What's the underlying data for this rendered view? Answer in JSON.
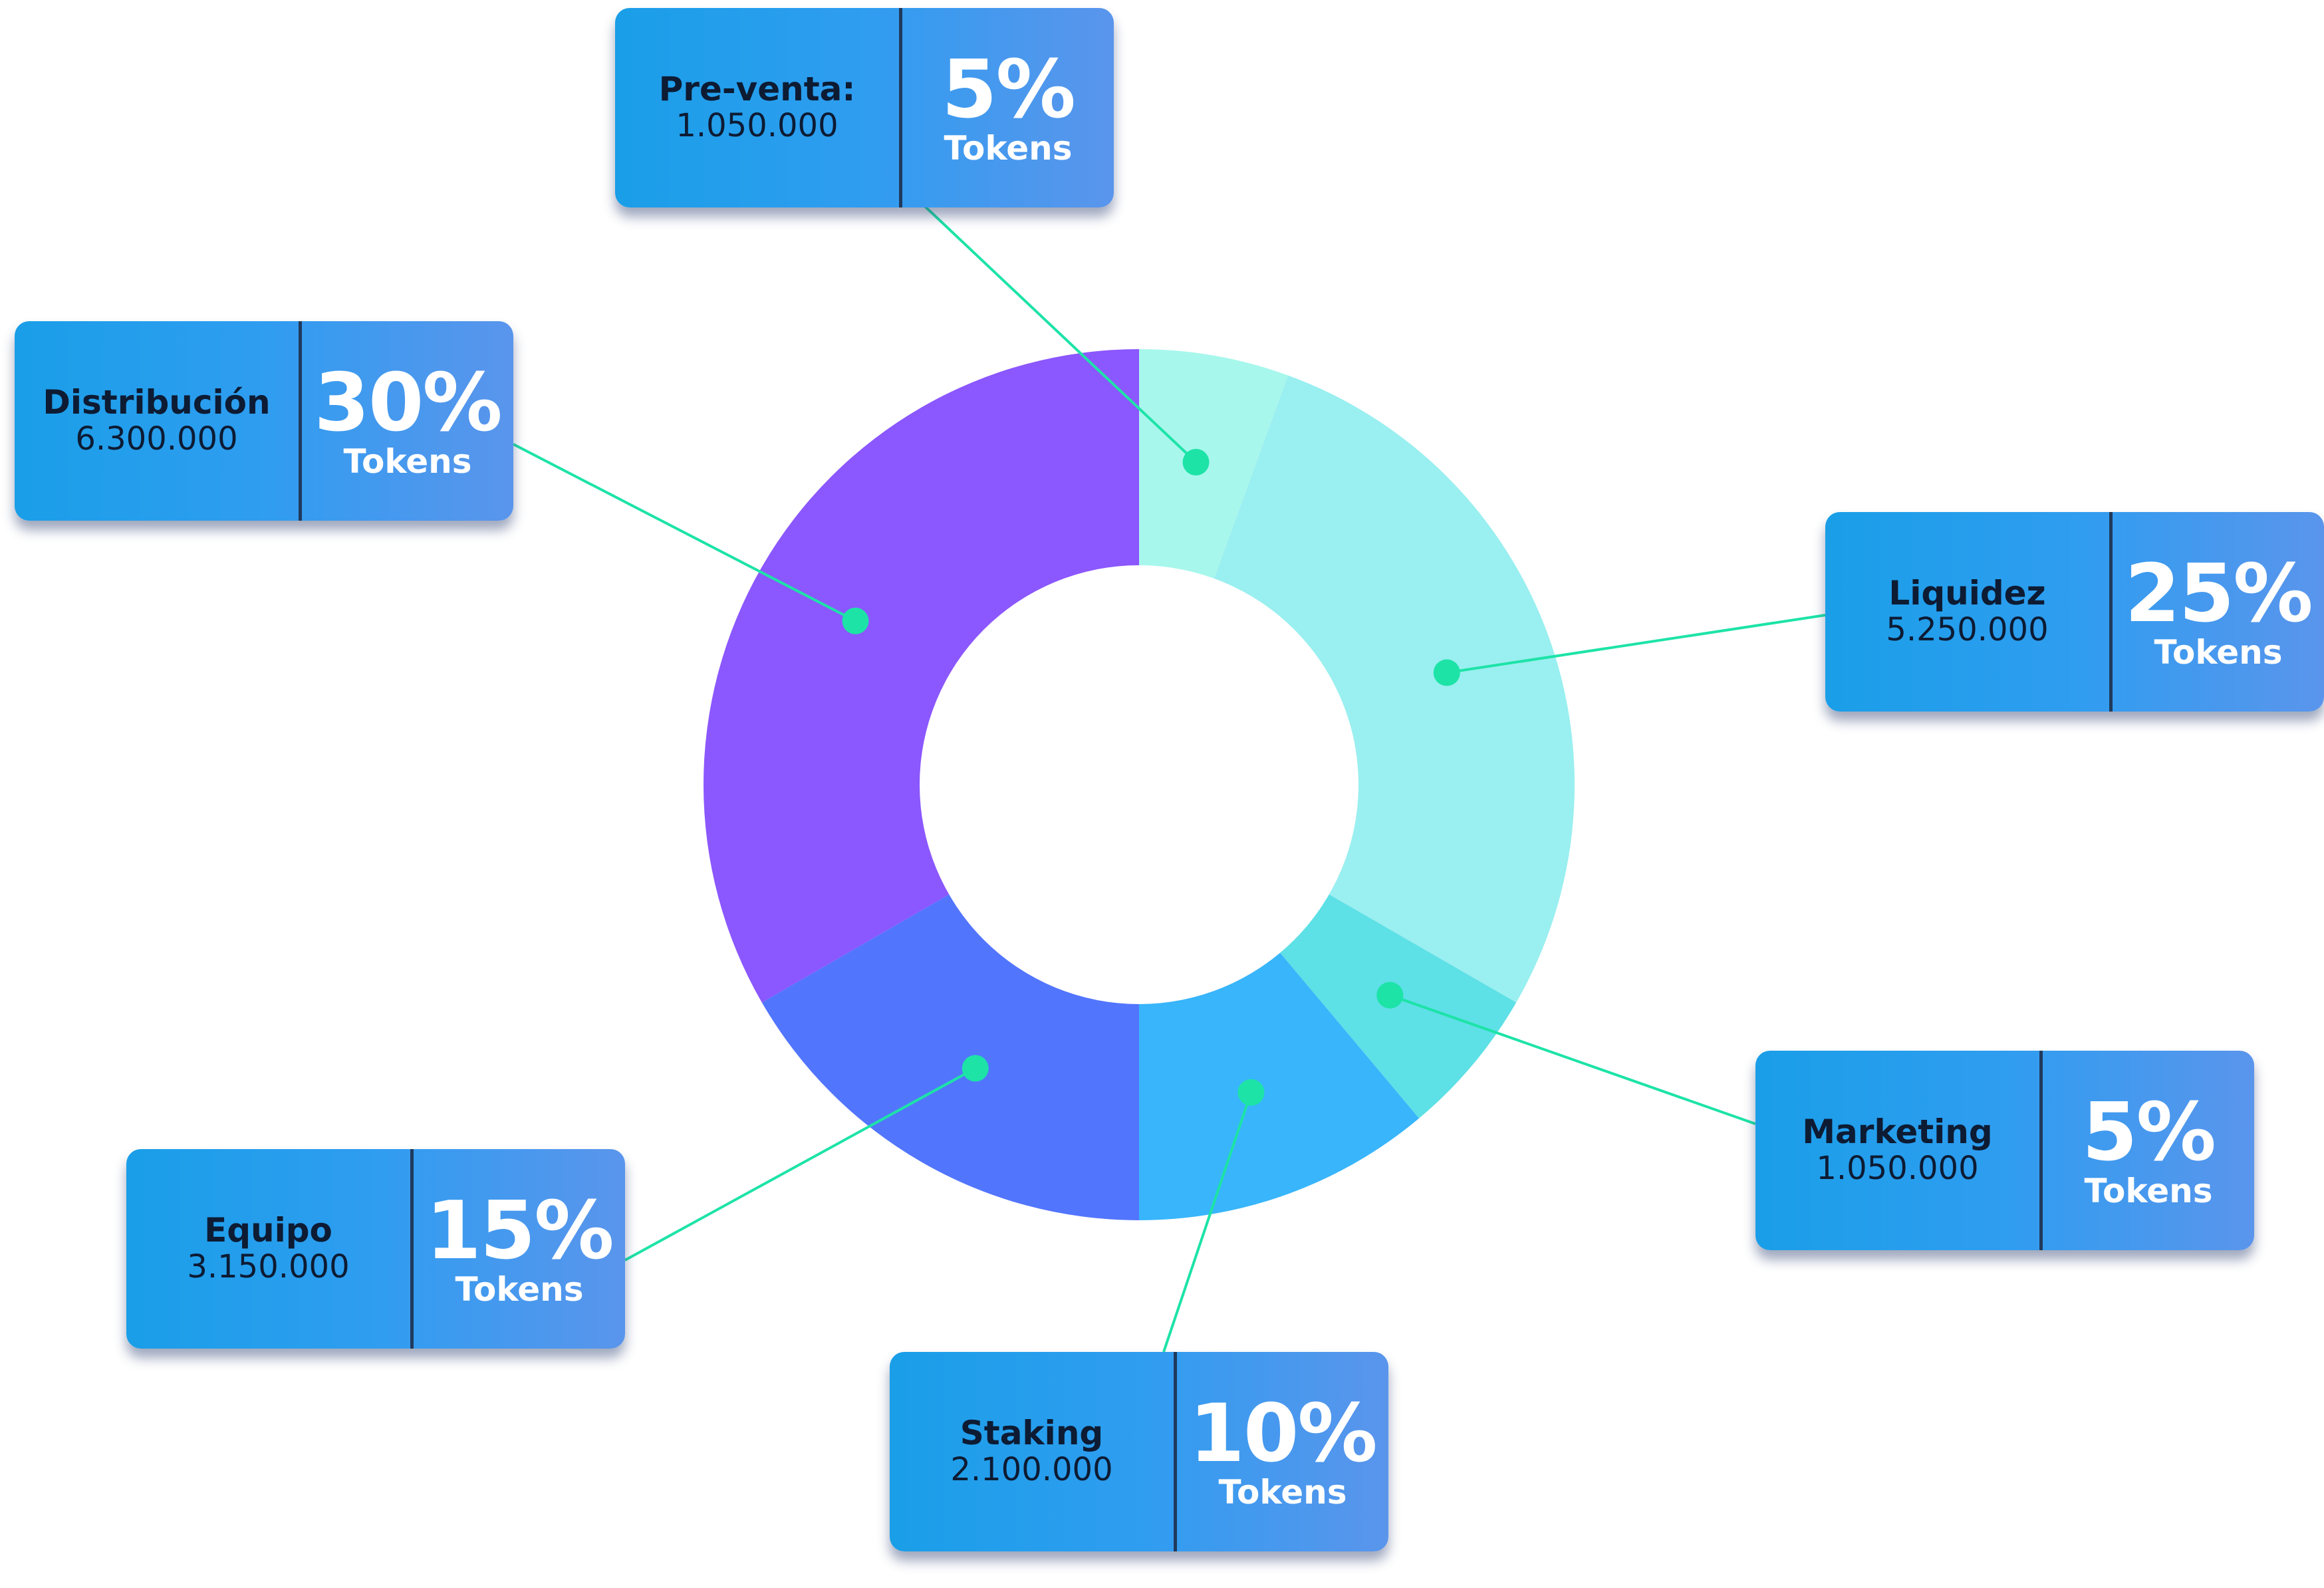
{
  "chart_data": {
    "type": "pie",
    "variant": "donut",
    "title": "",
    "unit": "Tokens",
    "slices": [
      {
        "name": "Pre-venta:",
        "amount": "1.050.000",
        "percent_label": "5%",
        "value": 5,
        "color": "#a8f7ec"
      },
      {
        "name": "Liquidez",
        "amount": "5.250.000",
        "percent_label": "25%",
        "value": 25,
        "color": "#9aeff0"
      },
      {
        "name": "Marketing",
        "amount": "1.050.000",
        "percent_label": "5%",
        "value": 5,
        "color": "#5de0e6"
      },
      {
        "name": "Staking",
        "amount": "2.100.000",
        "percent_label": "10%",
        "value": 10,
        "color": "#38b5fb"
      },
      {
        "name": "Equipo",
        "amount": "3.150.000",
        "percent_label": "15%",
        "value": 15,
        "color": "#5275fe"
      },
      {
        "name": "Distribución",
        "amount": "6.300.000",
        "percent_label": "30%",
        "value": 30,
        "color": "#8b57fe"
      }
    ],
    "connector_color": "#1de3a7",
    "card_color": "#2f9df0",
    "legend": "none"
  }
}
